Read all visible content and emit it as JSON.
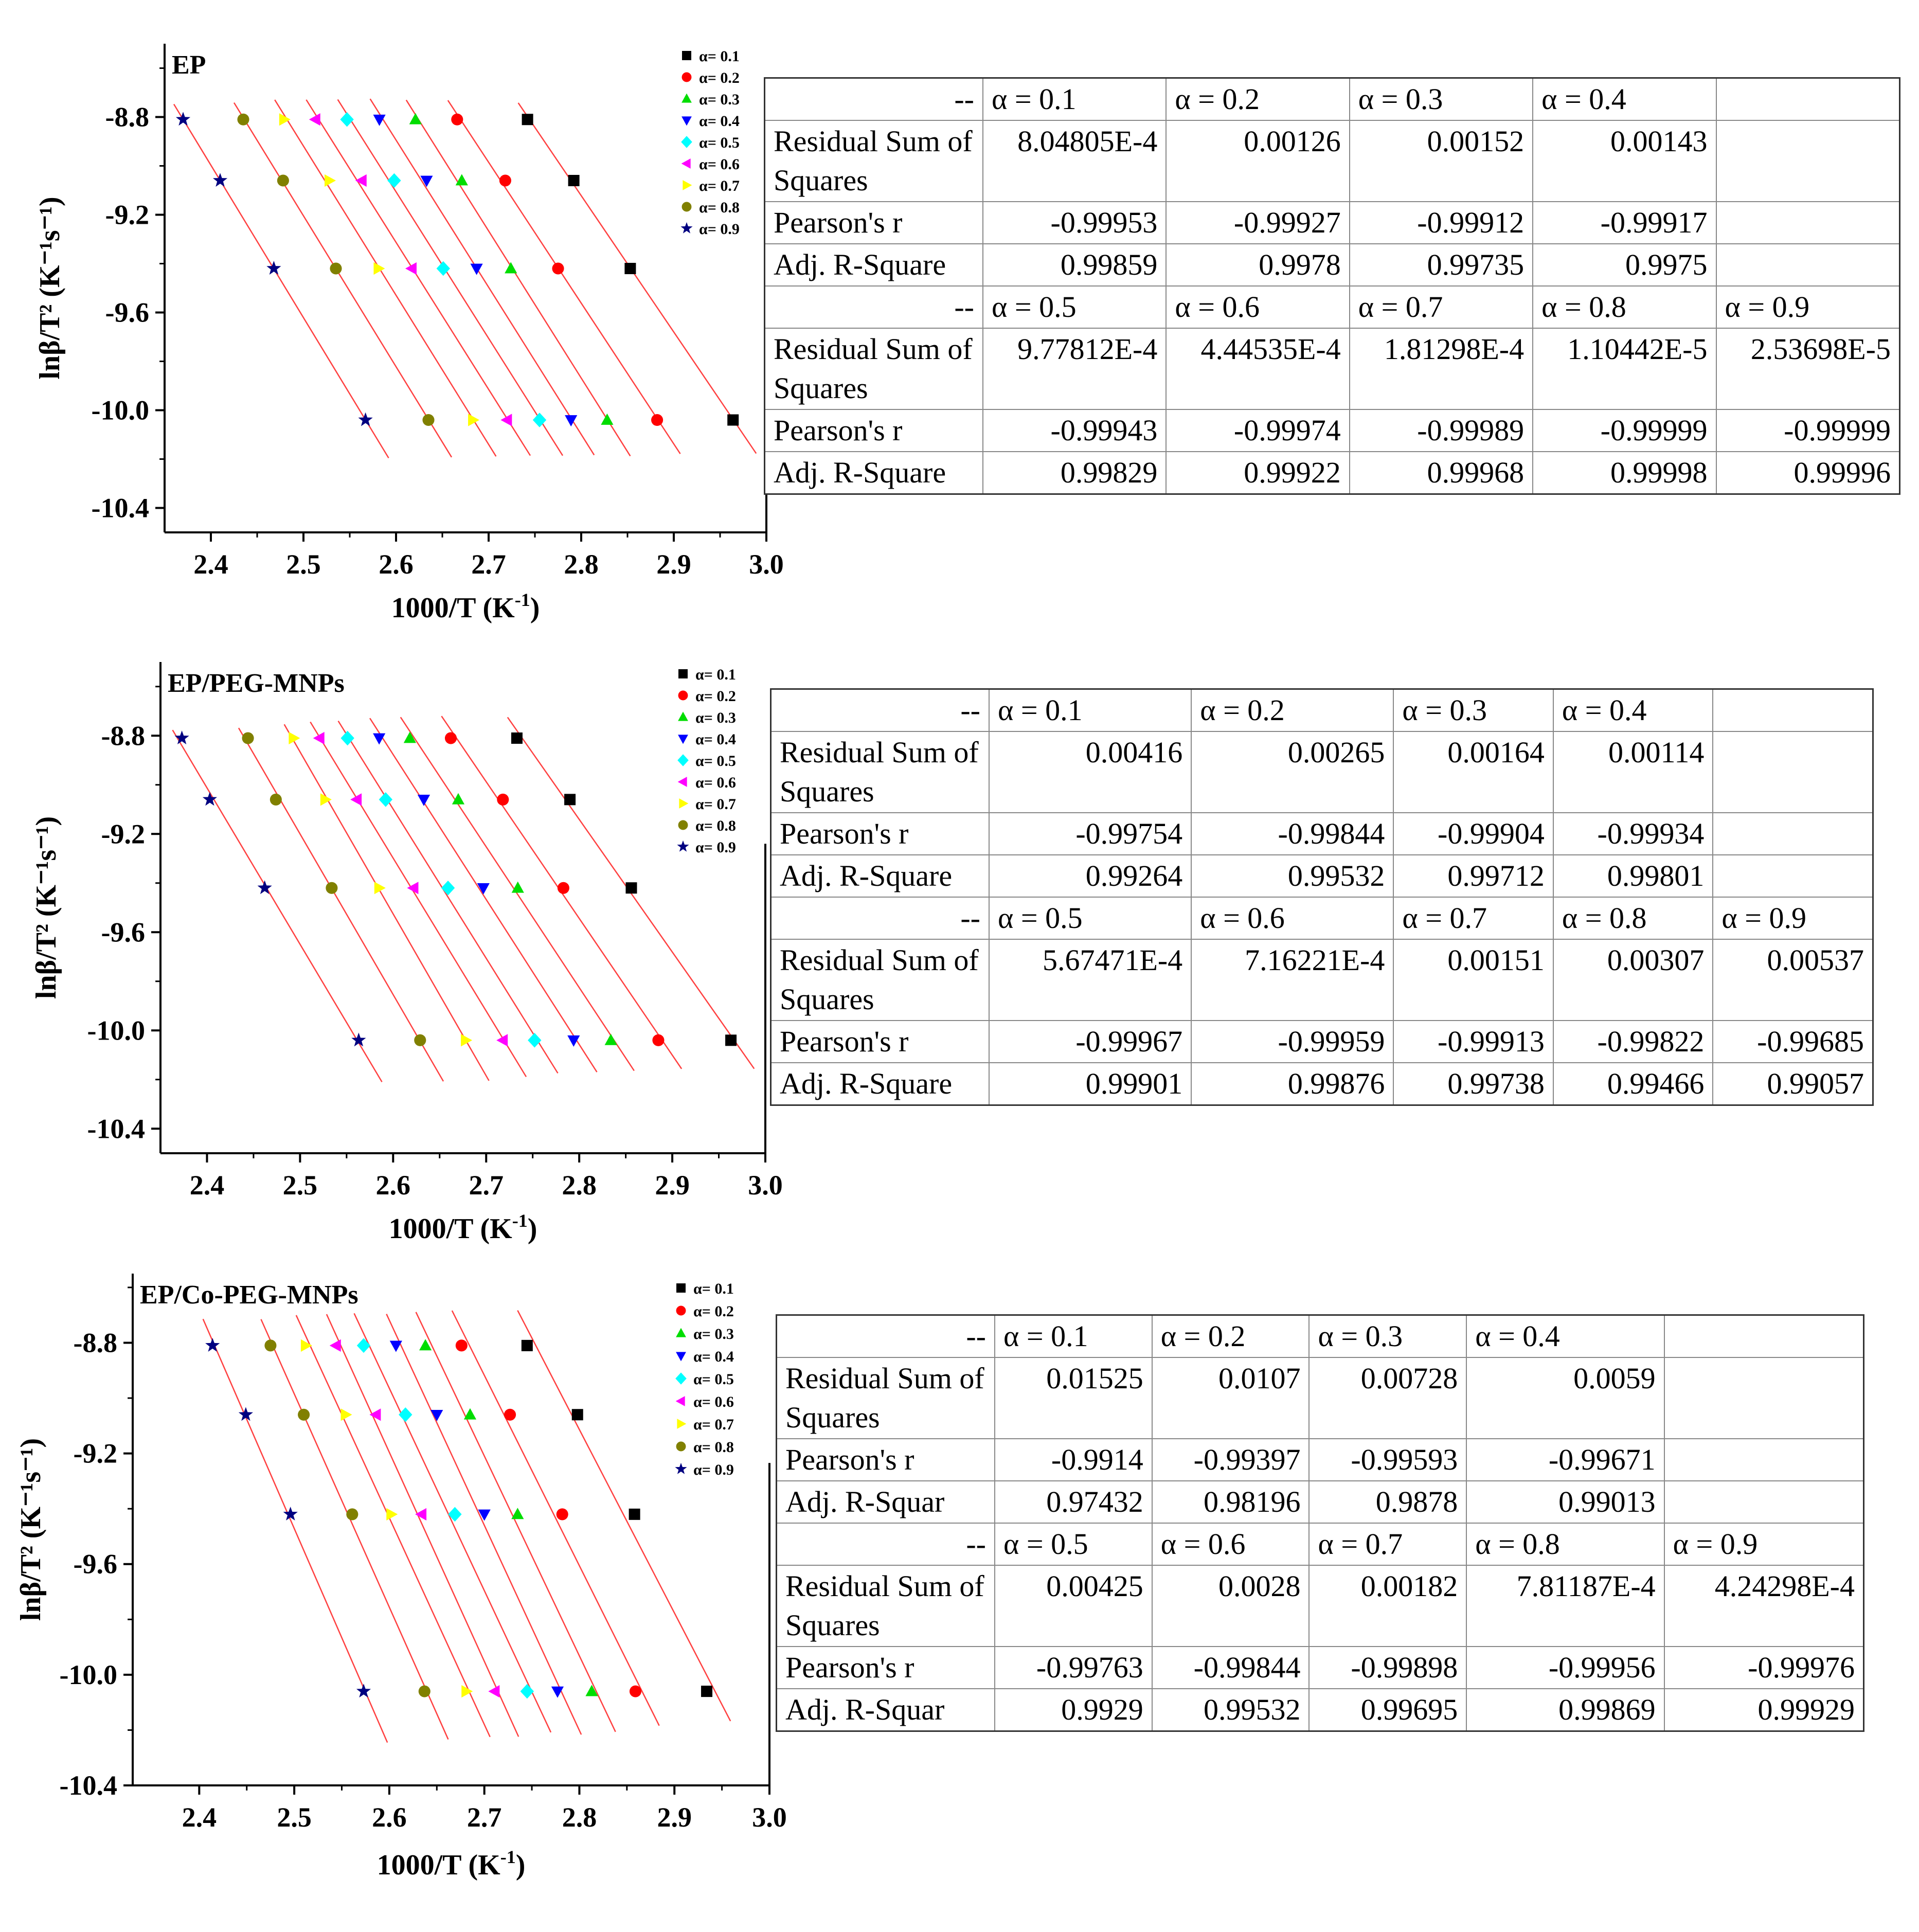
{
  "panels": [
    {
      "chart_data": {
        "type": "scatter",
        "title": "EP",
        "xlabel": "1000/T (K",
        "xlabel_sup": "-1",
        "xlabel_end": ")",
        "ylabel": "lnβ/T² (K⁻¹s⁻¹)",
        "xlim": [
          2.35,
          3.0
        ],
        "ylim": [
          -10.5,
          -8.5
        ],
        "xticks": [
          2.4,
          2.5,
          2.6,
          2.7,
          2.8,
          2.9,
          3.0
        ],
        "xtick_labels": [
          "2.4",
          "2.5",
          "2.6",
          "2.7",
          "2.8",
          "2.9",
          "3.0"
        ],
        "yticks": [
          -8.8,
          -9.2,
          -9.6,
          -10.0,
          -10.4
        ],
        "ytick_labels": [
          "-8.8",
          "-9.2",
          "-9.6",
          "-10.0",
          "-10.4"
        ],
        "y": [
          -8.81,
          -9.06,
          -9.42,
          -10.04
        ],
        "series": [
          {
            "name": "α= 0.1",
            "x": [
              2.742,
              2.792,
              2.853,
              2.964
            ]
          },
          {
            "name": "α= 0.2",
            "x": [
              2.666,
              2.718,
              2.775,
              2.882
            ]
          },
          {
            "name": "α= 0.3",
            "x": [
              2.621,
              2.671,
              2.724,
              2.828
            ]
          },
          {
            "name": "α= 0.4",
            "x": [
              2.582,
              2.633,
              2.687,
              2.789
            ]
          },
          {
            "name": "α= 0.5",
            "x": [
              2.547,
              2.598,
              2.651,
              2.755
            ]
          },
          {
            "name": "α= 0.6",
            "x": [
              2.513,
              2.563,
              2.617,
              2.72
            ]
          },
          {
            "name": "α= 0.7",
            "x": [
              2.479,
              2.528,
              2.581,
              2.683
            ]
          },
          {
            "name": "α= 0.8",
            "x": [
              2.435,
              2.478,
              2.535,
              2.635
            ]
          },
          {
            "name": "α= 0.9",
            "x": [
              2.37,
              2.41,
              2.468,
              2.567
            ]
          }
        ]
      },
      "table": {
        "rows": [
          [
            "--",
            "α = 0.1",
            "α = 0.2",
            "α = 0.3",
            "α = 0.4",
            ""
          ],
          [
            "Residual Sum of Squares",
            "8.04805E-4",
            "0.00126",
            "0.00152",
            "0.00143",
            ""
          ],
          [
            "Pearson's r",
            "-0.99953",
            "-0.99927",
            "-0.99912",
            "-0.99917",
            ""
          ],
          [
            "Adj. R-Square",
            "0.99859",
            "0.9978",
            "0.99735",
            "0.9975",
            ""
          ],
          [
            "--",
            "α = 0.5",
            "α = 0.6",
            "α = 0.7",
            "α = 0.8",
            "α = 0.9"
          ],
          [
            "Residual Sum of Squares",
            "9.77812E-4",
            "4.44535E-4",
            "1.81298E-4",
            "1.10442E-5",
            "2.53698E-5"
          ],
          [
            "Pearson's r",
            "-0.99943",
            "-0.99974",
            "-0.99989",
            "-0.99999",
            "-0.99999"
          ],
          [
            "Adj. R-Square",
            "0.99829",
            "0.99922",
            "0.99968",
            "0.99998",
            "0.99996"
          ]
        ]
      }
    },
    {
      "chart_data": {
        "type": "scatter",
        "title": "EP/PEG-MNPs",
        "xlabel": "1000/T (K",
        "xlabel_sup": "-1",
        "xlabel_end": ")",
        "ylabel": "lnβ/T² (K⁻¹s⁻¹)",
        "xlim": [
          2.35,
          3.0
        ],
        "ylim": [
          -10.5,
          -8.5
        ],
        "xticks": [
          2.4,
          2.5,
          2.6,
          2.7,
          2.8,
          2.9,
          3.0
        ],
        "xtick_labels": [
          "2.4",
          "2.5",
          "2.6",
          "2.7",
          "2.8",
          "2.9",
          "3.0"
        ],
        "yticks": [
          -8.8,
          -9.2,
          -9.6,
          -10.0,
          -10.4
        ],
        "ytick_labels": [
          "-8.8",
          "-9.2",
          "-9.6",
          "-10.0",
          "-10.4"
        ],
        "y": [
          -8.81,
          -9.06,
          -9.42,
          -10.04
        ],
        "series": [
          {
            "name": "α= 0.1",
            "x": [
              2.733,
              2.79,
              2.856,
              2.963
            ]
          },
          {
            "name": "α= 0.2",
            "x": [
              2.662,
              2.718,
              2.783,
              2.885
            ]
          },
          {
            "name": "α= 0.3",
            "x": [
              2.618,
              2.67,
              2.734,
              2.834
            ]
          },
          {
            "name": "α= 0.4",
            "x": [
              2.585,
              2.633,
              2.697,
              2.794
            ]
          },
          {
            "name": "α= 0.5",
            "x": [
              2.551,
              2.592,
              2.659,
              2.752
            ]
          },
          {
            "name": "α= 0.6",
            "x": [
              2.521,
              2.561,
              2.622,
              2.718
            ]
          },
          {
            "name": "α= 0.7",
            "x": [
              2.493,
              2.527,
              2.585,
              2.678
            ]
          },
          {
            "name": "α= 0.8",
            "x": [
              2.444,
              2.474,
              2.534,
              2.629
            ]
          },
          {
            "name": "α= 0.9",
            "x": [
              2.373,
              2.403,
              2.462,
              2.563
            ]
          }
        ]
      },
      "table": {
        "rows": [
          [
            "--",
            "α = 0.1",
            "α = 0.2",
            "α = 0.3",
            "α = 0.4",
            ""
          ],
          [
            "Residual Sum of Squares",
            "0.00416",
            "0.00265",
            "0.00164",
            "0.00114",
            ""
          ],
          [
            "Pearson's r",
            "-0.99754",
            "-0.99844",
            "-0.99904",
            "-0.99934",
            ""
          ],
          [
            "Adj. R-Square",
            "0.99264",
            "0.99532",
            "0.99712",
            "0.99801",
            ""
          ],
          [
            "--",
            "α = 0.5",
            "α = 0.6",
            "α = 0.7",
            "α = 0.8",
            "α = 0.9"
          ],
          [
            "Residual Sum of Squares",
            "5.67471E-4",
            "7.16221E-4",
            "0.00151",
            "0.00307",
            "0.00537"
          ],
          [
            "Pearson's r",
            "-0.99967",
            "-0.99959",
            "-0.99913",
            "-0.99822",
            "-0.99685"
          ],
          [
            "Adj. R-Square",
            "0.99901",
            "0.99876",
            "0.99738",
            "0.99466",
            "0.99057"
          ]
        ]
      }
    },
    {
      "chart_data": {
        "type": "scatter",
        "title": "EP/Co-PEG-MNPs",
        "xlabel": "1000/T (K",
        "xlabel_sup": "-1",
        "xlabel_end": ")",
        "ylabel": "lnβ/T² (K⁻¹s⁻¹)",
        "xlim": [
          2.33,
          3.0
        ],
        "ylim": [
          -10.4,
          -8.55
        ],
        "xticks": [
          2.4,
          2.5,
          2.6,
          2.7,
          2.8,
          2.9,
          3.0
        ],
        "xtick_labels": [
          "2.4",
          "2.5",
          "2.6",
          "2.7",
          "2.8",
          "2.9",
          "3.0"
        ],
        "yticks": [
          -8.8,
          -9.2,
          -9.6,
          -10.0,
          -10.4
        ],
        "ytick_labels": [
          "-8.8",
          "-9.2",
          "-9.6",
          "-10.0",
          "-10.4"
        ],
        "y": [
          -8.81,
          -9.06,
          -9.42,
          -10.06
        ],
        "series": [
          {
            "name": "α= 0.1",
            "x": [
              2.745,
              2.798,
              2.858,
              2.934
            ]
          },
          {
            "name": "α= 0.2",
            "x": [
              2.676,
              2.727,
              2.782,
              2.859
            ]
          },
          {
            "name": "α= 0.3",
            "x": [
              2.638,
              2.685,
              2.735,
              2.813
            ]
          },
          {
            "name": "α= 0.4",
            "x": [
              2.607,
              2.65,
              2.7,
              2.777
            ]
          },
          {
            "name": "α= 0.5",
            "x": [
              2.573,
              2.617,
              2.669,
              2.745
            ]
          },
          {
            "name": "α= 0.6",
            "x": [
              2.544,
              2.586,
              2.634,
              2.711
            ]
          },
          {
            "name": "α= 0.7",
            "x": [
              2.512,
              2.554,
              2.602,
              2.681
            ]
          },
          {
            "name": "α= 0.8",
            "x": [
              2.475,
              2.51,
              2.561,
              2.637
            ]
          },
          {
            "name": "α= 0.9",
            "x": [
              2.414,
              2.449,
              2.496,
              2.573
            ]
          }
        ]
      },
      "table": {
        "rows": [
          [
            "--",
            "α = 0.1",
            "α = 0.2",
            "α = 0.3",
            "α = 0.4",
            ""
          ],
          [
            "Residual Sum of Squares",
            "0.01525",
            "0.0107",
            "0.00728",
            "0.0059",
            ""
          ],
          [
            "Pearson's r",
            "-0.9914",
            "-0.99397",
            "-0.99593",
            "-0.99671",
            ""
          ],
          [
            "Adj. R-Squar",
            "0.97432",
            "0.98196",
            "0.9878",
            "0.99013",
            ""
          ],
          [
            "--",
            "α = 0.5",
            "α = 0.6",
            "α = 0.7",
            "α = 0.8",
            "α = 0.9"
          ],
          [
            "Residual Sum of Squares",
            "0.00425",
            "0.0028",
            "0.00182",
            "7.81187E-4",
            "4.24298E-4"
          ],
          [
            "Pearson's r",
            "-0.99763",
            "-0.99844",
            "-0.99898",
            "-0.99956",
            "-0.99976"
          ],
          [
            "Adj. R-Squar",
            "0.9929",
            "0.99532",
            "0.99695",
            "0.99869",
            "0.99929"
          ]
        ]
      }
    }
  ],
  "style": {
    "series_colors": [
      "#000000",
      "#ff0000",
      "#00dd00",
      "#0000ff",
      "#00ffff",
      "#ff00ff",
      "#ffff00",
      "#808000",
      "#000080"
    ],
    "series_markers": [
      "square",
      "circle",
      "triangle-up",
      "triangle-down",
      "diamond",
      "triangle-left",
      "triangle-right",
      "hexagon",
      "star"
    ],
    "fit_line_color": "#ff4040"
  }
}
